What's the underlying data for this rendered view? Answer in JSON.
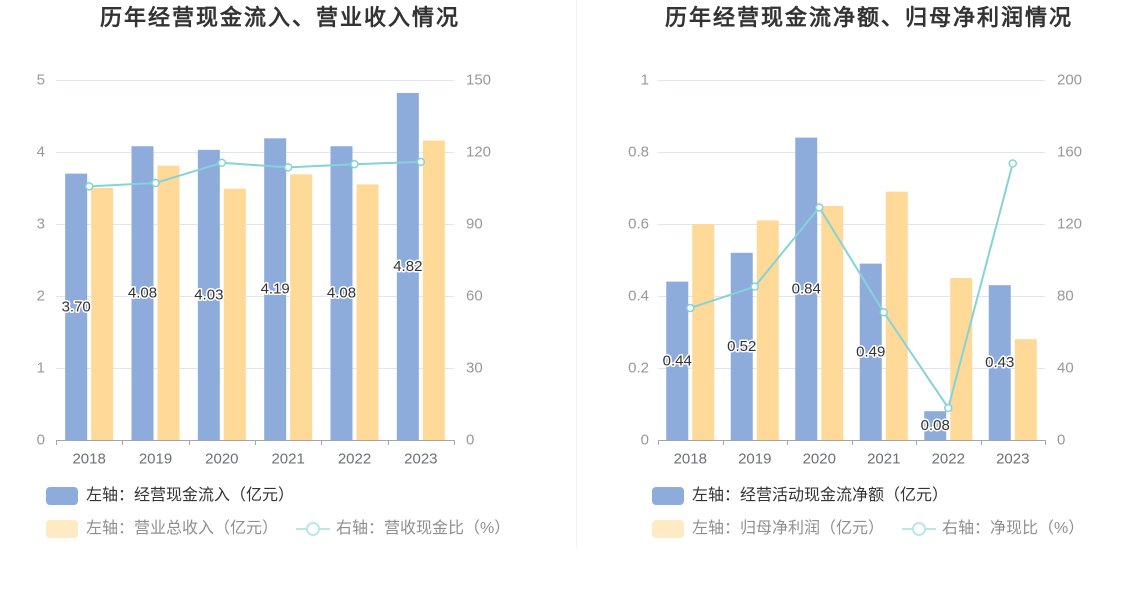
{
  "chart_data": [
    {
      "type": "bar",
      "title": "历年经营现金流入、营业收入情况",
      "categories": [
        "2018",
        "2019",
        "2020",
        "2021",
        "2022",
        "2023"
      ],
      "series": [
        {
          "name": "左轴：经营现金流入（亿元）",
          "type": "bar",
          "color": "#8eacdb",
          "values": [
            3.7,
            4.08,
            4.03,
            4.19,
            4.08,
            4.82
          ],
          "value_labels": [
            "3.70",
            "4.08",
            "4.03",
            "4.19",
            "4.08",
            "4.82"
          ]
        },
        {
          "name": "左轴：营业总收入（亿元）",
          "type": "bar",
          "color": "#ffd998",
          "values": [
            3.5,
            3.81,
            3.49,
            3.69,
            3.55,
            4.16
          ]
        },
        {
          "name": "右轴：营收现金比（%）",
          "type": "line",
          "color": "#84d4d7",
          "values": [
            105.7,
            107.1,
            115.5,
            113.6,
            114.9,
            115.9
          ]
        }
      ],
      "y_left": {
        "range": [
          0,
          5
        ],
        "ticks": [
          0,
          1,
          2,
          3,
          4,
          5
        ]
      },
      "y_right": {
        "range": [
          0,
          150
        ],
        "ticks": [
          0,
          30,
          60,
          90,
          120,
          150
        ]
      },
      "grid": true,
      "legend_position": "bottom-left"
    },
    {
      "type": "bar",
      "title": "历年经营现金流净额、归母净利润情况",
      "categories": [
        "2018",
        "2019",
        "2020",
        "2021",
        "2022",
        "2023"
      ],
      "series": [
        {
          "name": "左轴：经营活动现金流净额（亿元）",
          "type": "bar",
          "color": "#8eacdb",
          "values": [
            0.44,
            0.52,
            0.84,
            0.49,
            0.08,
            0.43
          ],
          "value_labels": [
            "0.44",
            "0.52",
            "0.84",
            "0.49",
            "0.08",
            "0.43"
          ]
        },
        {
          "name": "左轴：归母净利润（亿元）",
          "type": "bar",
          "color": "#ffd998",
          "values": [
            0.6,
            0.61,
            0.65,
            0.69,
            0.45,
            0.28
          ]
        },
        {
          "name": "右轴：净现比（%）",
          "type": "line",
          "color": "#84d4d7",
          "values": [
            73.3,
            85.2,
            129.2,
            71.0,
            17.8,
            153.6
          ]
        }
      ],
      "y_left": {
        "range": [
          0,
          1
        ],
        "ticks": [
          0,
          0.2,
          0.4,
          0.6,
          0.8,
          1
        ]
      },
      "y_right": {
        "range": [
          0,
          200
        ],
        "ticks": [
          0,
          40,
          80,
          120,
          160,
          200
        ]
      },
      "grid": true,
      "legend_position": "bottom-left"
    }
  ]
}
